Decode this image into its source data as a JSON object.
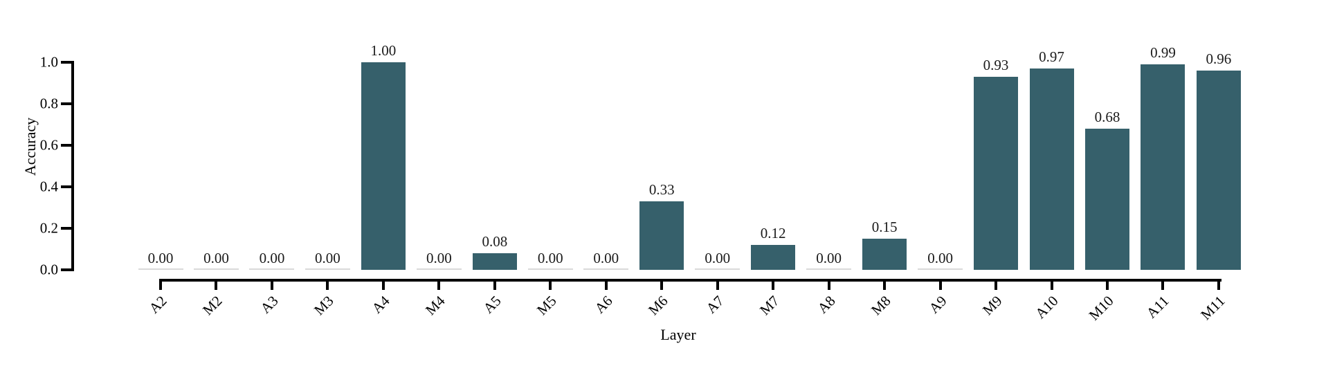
{
  "figure": {
    "background": "#ffffff"
  },
  "chart_data": {
    "type": "bar",
    "title": "",
    "xlabel": "Layer",
    "ylabel": "Accuracy",
    "categories": [
      "A2",
      "M2",
      "A3",
      "M3",
      "A4",
      "M4",
      "A5",
      "M5",
      "A6",
      "M6",
      "A7",
      "M7",
      "A8",
      "M8",
      "A9",
      "M9",
      "A10",
      "M10",
      "A11",
      "M11"
    ],
    "values": [
      0.0,
      0.0,
      0.0,
      0.0,
      1.0,
      0.0,
      0.08,
      0.0,
      0.0,
      0.33,
      0.0,
      0.12,
      0.0,
      0.15,
      0.0,
      0.93,
      0.97,
      0.68,
      0.99,
      0.96
    ],
    "value_labels": [
      "0.00",
      "0.00",
      "0.00",
      "0.00",
      "1.00",
      "0.00",
      "0.08",
      "0.00",
      "0.00",
      "0.33",
      "0.00",
      "0.12",
      "0.00",
      "0.15",
      "0.00",
      "0.93",
      "0.97",
      "0.68",
      "0.99",
      "0.96"
    ],
    "ylim": [
      0.0,
      1.0
    ],
    "yticks": [
      "0.0",
      "0.2",
      "0.4",
      "0.6",
      "0.8",
      "1.0"
    ],
    "grid": false,
    "legend": null,
    "bar_color": "#36606b",
    "zero_bar_line_color": "#d9d9d9",
    "axis_color": "#000000",
    "text_color": "#1a1a1a"
  }
}
